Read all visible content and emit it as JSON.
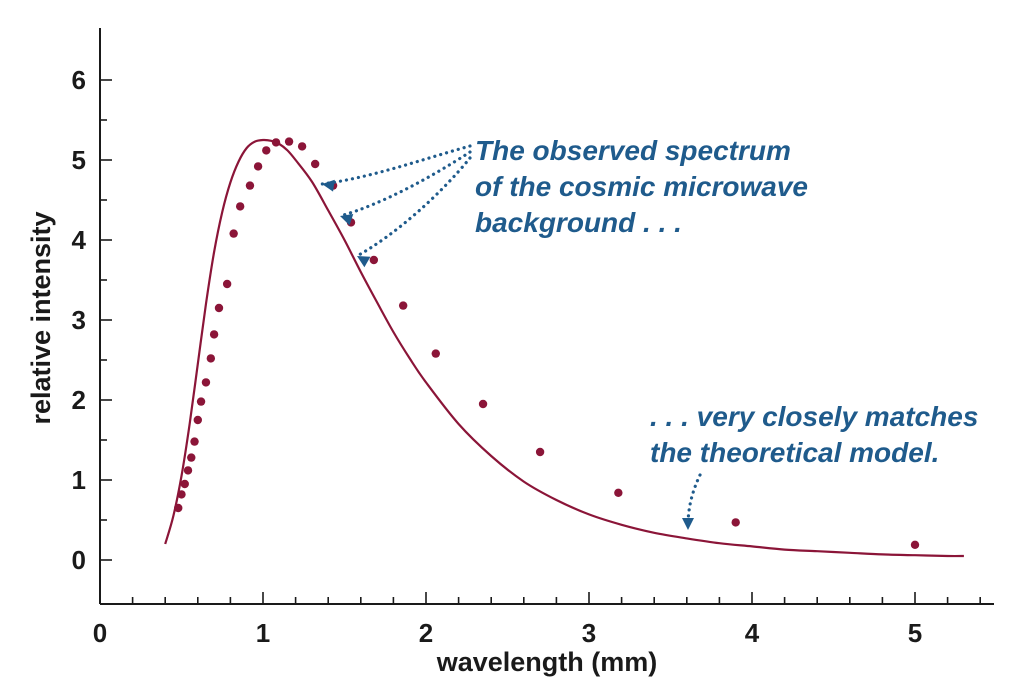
{
  "chart_data": {
    "type": "line",
    "title": "",
    "xlabel": "wavelength (mm)",
    "ylabel": "relative intensity",
    "xlim": [
      0,
      5.5
    ],
    "ylim": [
      -0.55,
      6.5
    ],
    "x_ticks": [
      "0",
      "1",
      "2",
      "3",
      "4",
      "5"
    ],
    "y_ticks": [
      "0",
      "1",
      "2",
      "3",
      "4",
      "5",
      "6"
    ],
    "grid": false,
    "legend": "none",
    "series": [
      {
        "name": "",
        "kind": "line",
        "x": [
          0.4,
          0.45,
          0.5,
          0.55,
          0.6,
          0.65,
          0.7,
          0.75,
          0.8,
          0.85,
          0.9,
          0.95,
          1.0,
          1.05,
          1.1,
          1.15,
          1.2,
          1.3,
          1.4,
          1.5,
          1.6,
          1.7,
          1.8,
          1.9,
          2.0,
          2.2,
          2.4,
          2.6,
          2.8,
          3.0,
          3.2,
          3.4,
          3.6,
          3.8,
          4.0,
          4.2,
          4.4,
          4.6,
          4.8,
          5.0,
          5.2,
          5.3
        ],
        "y": [
          0.2,
          0.55,
          1.05,
          1.7,
          2.45,
          3.2,
          3.85,
          4.35,
          4.72,
          4.98,
          5.15,
          5.23,
          5.25,
          5.24,
          5.2,
          5.12,
          5.0,
          4.73,
          4.37,
          4.0,
          3.6,
          3.22,
          2.85,
          2.52,
          2.22,
          1.7,
          1.3,
          0.98,
          0.75,
          0.57,
          0.44,
          0.34,
          0.27,
          0.21,
          0.17,
          0.13,
          0.11,
          0.09,
          0.07,
          0.06,
          0.05,
          0.05
        ]
      },
      {
        "name": "",
        "kind": "points",
        "x": [
          0.48,
          0.5,
          0.52,
          0.54,
          0.56,
          0.58,
          0.6,
          0.62,
          0.65,
          0.68,
          0.7,
          0.73,
          0.78,
          0.82,
          0.86,
          0.92,
          0.97,
          1.02,
          1.08,
          1.16,
          1.24,
          1.32,
          1.43,
          1.54,
          1.68,
          1.86,
          2.06,
          2.35,
          2.7,
          3.18,
          3.9,
          5.0
        ],
        "y": [
          0.65,
          0.82,
          0.95,
          1.12,
          1.28,
          1.48,
          1.75,
          1.98,
          2.22,
          2.52,
          2.82,
          3.15,
          3.45,
          4.08,
          4.42,
          4.68,
          4.92,
          5.12,
          5.22,
          5.23,
          5.17,
          4.95,
          4.68,
          4.22,
          3.75,
          3.18,
          2.58,
          1.95,
          1.35,
          0.84,
          0.47,
          0.19
        ]
      }
    ],
    "annotations": [
      {
        "id": "observed",
        "lines": [
          "The observed spectrum",
          "of the cosmic microwave",
          "background . . ."
        ]
      },
      {
        "id": "model",
        "lines": [
          ". . . very closely matches",
          "the theoretical model."
        ]
      }
    ],
    "colors": {
      "curve": "#8b1538",
      "points": "#8b1538",
      "annotation": "#1f5b8c",
      "axis": "#1a1a1a"
    }
  }
}
